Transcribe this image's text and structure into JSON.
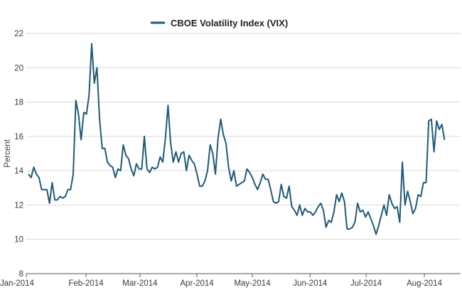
{
  "chart_data": {
    "type": "line",
    "title": "",
    "legend": {
      "position": "top-center",
      "entries": [
        "CBOE Volatility Index (VIX)"
      ]
    },
    "xlabel": "",
    "ylabel": "Percent",
    "ylim": [
      8,
      22
    ],
    "yticks": [
      8,
      10,
      12,
      14,
      16,
      18,
      20,
      22
    ],
    "xtick_labels": [
      "Jan-2014",
      "Feb-2014",
      "Mar-2014",
      "Apr-2014",
      "May-2014",
      "Jun-2014",
      "Jul-2014",
      "Aug-2014"
    ],
    "grid": {
      "horizontal": true,
      "vertical": false
    },
    "colors": {
      "line": "#1f5a78",
      "grid": "#d9d9d9",
      "axis": "#555555"
    },
    "series": [
      {
        "name": "CBOE Volatility Index (VIX)",
        "x_start": "Jan-2014",
        "x_end": "Aug-2014",
        "values": [
          13.8,
          13.6,
          14.2,
          13.8,
          13.6,
          12.9,
          12.9,
          12.9,
          12.1,
          13.3,
          12.3,
          12.3,
          12.5,
          12.4,
          12.5,
          12.9,
          12.9,
          13.8,
          18.1,
          17.3,
          15.8,
          17.4,
          17.3,
          18.4,
          21.4,
          19.1,
          20.0,
          17.0,
          15.3,
          15.3,
          14.5,
          14.3,
          14.2,
          13.6,
          14.1,
          14.0,
          15.5,
          14.9,
          14.7,
          14.1,
          13.7,
          14.4,
          14.1,
          14.1,
          16.0,
          14.1,
          13.9,
          14.2,
          14.1,
          14.2,
          14.8,
          14.5,
          15.9,
          17.8,
          15.6,
          14.5,
          15.1,
          14.5,
          15.0,
          15.1,
          14.0,
          14.9,
          14.6,
          14.4,
          13.8,
          13.1,
          13.1,
          13.4,
          14.0,
          15.5,
          15.0,
          13.8,
          15.9,
          17.0,
          16.1,
          15.6,
          14.2,
          13.4,
          14.0,
          13.1,
          13.2,
          13.3,
          13.4,
          14.1,
          13.9,
          13.6,
          13.2,
          12.9,
          13.3,
          13.8,
          13.5,
          13.5,
          12.9,
          12.2,
          12.1,
          12.2,
          13.2,
          12.5,
          12.4,
          13.1,
          11.9,
          11.7,
          11.4,
          12.0,
          11.4,
          11.8,
          11.6,
          11.6,
          11.4,
          11.6,
          11.9,
          12.1,
          11.7,
          10.7,
          11.1,
          11.0,
          11.6,
          12.6,
          12.2,
          12.7,
          12.2,
          10.6,
          10.6,
          10.7,
          11.0,
          12.1,
          11.6,
          11.7,
          11.3,
          11.6,
          11.2,
          10.8,
          10.3,
          10.8,
          11.4,
          12.0,
          11.4,
          12.6,
          12.1,
          11.8,
          11.9,
          11.0,
          14.5,
          12.0,
          12.8,
          12.2,
          11.5,
          11.8,
          12.6,
          12.5,
          13.3,
          13.3,
          16.9,
          17.0,
          15.1,
          16.9,
          16.4,
          16.7,
          15.8
        ]
      }
    ]
  }
}
